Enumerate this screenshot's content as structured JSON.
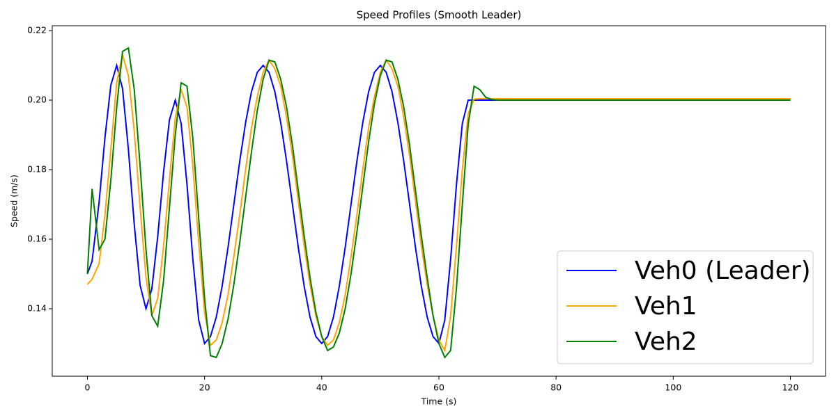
{
  "chart_data": {
    "type": "line",
    "title": "Speed Profiles (Smooth Leader)",
    "xlabel": "Time (s)",
    "ylabel": "Speed (m/s)",
    "x": [
      0,
      0.8,
      2,
      3,
      4,
      5,
      6,
      7,
      8,
      9,
      10,
      11,
      12,
      13,
      14,
      15,
      16,
      17,
      18,
      19,
      20,
      21,
      22,
      23,
      24,
      25,
      26,
      27,
      28,
      29,
      30,
      31,
      32,
      33,
      34,
      35,
      36,
      37,
      38,
      39,
      40,
      41,
      42,
      43,
      44,
      45,
      46,
      47,
      48,
      49,
      50,
      51,
      52,
      53,
      54,
      55,
      56,
      57,
      58,
      59,
      60,
      61,
      62,
      63,
      64,
      65,
      66,
      67,
      68,
      69,
      70,
      120
    ],
    "series": [
      {
        "name": "Veh0 (Leader)",
        "color": "#0000ff",
        "values": [
          0.15,
          0.1537,
          0.1707,
          0.1893,
          0.2043,
          0.21,
          0.2033,
          0.1858,
          0.1642,
          0.1467,
          0.14,
          0.1457,
          0.1607,
          0.1793,
          0.1943,
          0.2,
          0.1933,
          0.1758,
          0.1542,
          0.1367,
          0.13,
          0.132,
          0.1376,
          0.1465,
          0.1576,
          0.17,
          0.1824,
          0.1935,
          0.2024,
          0.208,
          0.21,
          0.208,
          0.2024,
          0.1935,
          0.1824,
          0.17,
          0.1576,
          0.1465,
          0.1376,
          0.132,
          0.13,
          0.132,
          0.1376,
          0.1465,
          0.1576,
          0.17,
          0.1824,
          0.1935,
          0.2024,
          0.208,
          0.21,
          0.208,
          0.2024,
          0.1935,
          0.1824,
          0.17,
          0.1576,
          0.1465,
          0.1376,
          0.132,
          0.13,
          0.1367,
          0.1542,
          0.1758,
          0.1933,
          0.2,
          0.2,
          0.2,
          0.2,
          0.2,
          0.2,
          0.2
        ]
      },
      {
        "name": "Veh1",
        "color": "#ffa500",
        "values": [
          0.147,
          0.1485,
          0.153,
          0.167,
          0.186,
          0.205,
          0.213,
          0.207,
          0.191,
          0.169,
          0.149,
          0.138,
          0.143,
          0.158,
          0.177,
          0.195,
          0.203,
          0.198,
          0.181,
          0.159,
          0.139,
          0.1295,
          0.131,
          0.136,
          0.144,
          0.155,
          0.167,
          0.18,
          0.192,
          0.201,
          0.208,
          0.2115,
          0.209,
          0.204,
          0.195,
          0.184,
          0.171,
          0.158,
          0.147,
          0.138,
          0.132,
          0.1295,
          0.131,
          0.136,
          0.144,
          0.155,
          0.167,
          0.18,
          0.192,
          0.201,
          0.208,
          0.2115,
          0.209,
          0.204,
          0.195,
          0.184,
          0.171,
          0.158,
          0.147,
          0.138,
          0.131,
          0.128,
          0.138,
          0.158,
          0.18,
          0.196,
          0.2003,
          0.2004,
          0.2004,
          0.2004,
          0.2004,
          0.2004
        ]
      },
      {
        "name": "Veh2",
        "color": "#008000",
        "values": [
          0.15,
          0.1745,
          0.157,
          0.16,
          0.177,
          0.198,
          0.214,
          0.215,
          0.203,
          0.181,
          0.157,
          0.138,
          0.135,
          0.148,
          0.169,
          0.19,
          0.205,
          0.204,
          0.189,
          0.166,
          0.143,
          0.1265,
          0.126,
          0.13,
          0.137,
          0.147,
          0.159,
          0.172,
          0.185,
          0.197,
          0.206,
          0.2115,
          0.211,
          0.206,
          0.198,
          0.187,
          0.174,
          0.161,
          0.149,
          0.139,
          0.132,
          0.128,
          0.129,
          0.133,
          0.14,
          0.15,
          0.162,
          0.175,
          0.188,
          0.199,
          0.207,
          0.2115,
          0.211,
          0.206,
          0.198,
          0.187,
          0.174,
          0.161,
          0.149,
          0.138,
          0.13,
          0.126,
          0.128,
          0.146,
          0.17,
          0.193,
          0.204,
          0.203,
          0.2008,
          0.2002,
          0.2,
          0.2
        ]
      }
    ],
    "xlim": [
      -6,
      126
    ],
    "ylim": [
      0.1206,
      0.2214
    ],
    "xticks": [
      0,
      20,
      40,
      60,
      80,
      100,
      120
    ],
    "yticks": [
      0.14,
      0.16,
      0.18,
      {
        "value": 0.2,
        "label": "0.20"
      },
      0.22
    ],
    "grid": false,
    "legend": "lower right"
  }
}
